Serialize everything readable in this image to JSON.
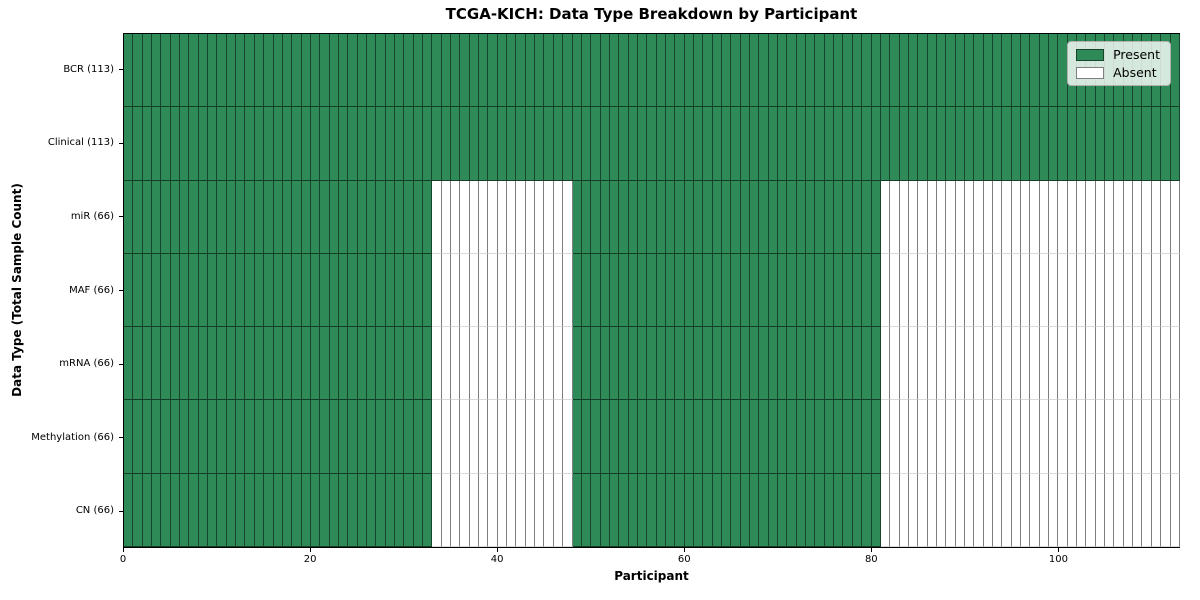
{
  "title": "TCGA-KICH: Data Type Breakdown by Participant",
  "xlabel": "Participant",
  "ylabel": "Data Type (Total Sample Count)",
  "legend": {
    "present_label": "Present",
    "absent_label": "Absent"
  },
  "colors": {
    "present": "#2E8B57",
    "absent": "#FFFFFF",
    "grid_line": "rgba(0,0,0,0.5)"
  },
  "chart_data": {
    "type": "heatmap",
    "title": "TCGA-KICH: Data Type Breakdown by Participant",
    "xlabel": "Participant",
    "ylabel": "Data Type (Total Sample Count)",
    "n_participants": 113,
    "x_range": [
      0,
      113
    ],
    "x_ticks": [
      0,
      20,
      40,
      60,
      80,
      100
    ],
    "legend_entries": [
      {
        "label": "Present",
        "color": "#2E8B57"
      },
      {
        "label": "Absent",
        "color": "#FFFFFF"
      }
    ],
    "legend_position": "upper right",
    "grid": "cell-borders",
    "rows": [
      {
        "label": "BCR (113)",
        "total_samples": 113,
        "present_ranges": [
          [
            0,
            113
          ]
        ]
      },
      {
        "label": "Clinical (113)",
        "total_samples": 113,
        "present_ranges": [
          [
            0,
            113
          ]
        ]
      },
      {
        "label": "miR (66)",
        "total_samples": 66,
        "present_ranges": [
          [
            0,
            33
          ],
          [
            48,
            81
          ]
        ]
      },
      {
        "label": "MAF (66)",
        "total_samples": 66,
        "present_ranges": [
          [
            0,
            33
          ],
          [
            48,
            81
          ]
        ]
      },
      {
        "label": "mRNA (66)",
        "total_samples": 66,
        "present_ranges": [
          [
            0,
            33
          ],
          [
            48,
            81
          ]
        ]
      },
      {
        "label": "Methylation (66)",
        "total_samples": 66,
        "present_ranges": [
          [
            0,
            33
          ],
          [
            48,
            81
          ]
        ]
      },
      {
        "label": "CN (66)",
        "total_samples": 66,
        "present_ranges": [
          [
            0,
            33
          ],
          [
            48,
            81
          ]
        ]
      }
    ]
  }
}
